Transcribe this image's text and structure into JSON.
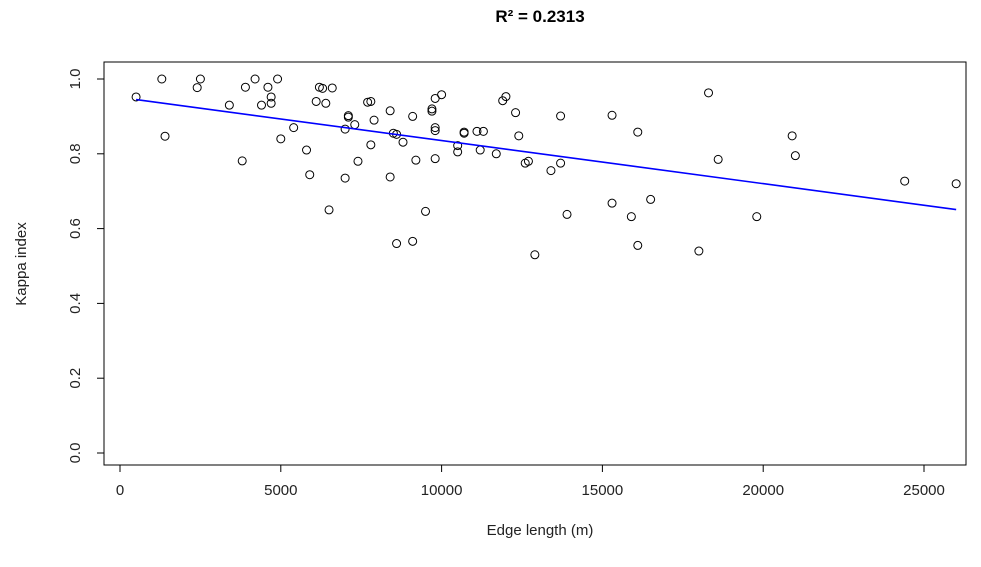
{
  "chart_data": {
    "type": "scatter",
    "title": "R² = 0.2313",
    "xlabel": "Edge length (m)",
    "ylabel": "Kappa index",
    "xlim": [
      0,
      26000
    ],
    "ylim": [
      0,
      1.0
    ],
    "x_ticks": [
      0,
      5000,
      10000,
      15000,
      20000,
      25000
    ],
    "y_ticks": [
      0.0,
      0.2,
      0.4,
      0.6,
      0.8,
      1.0
    ],
    "grid": false,
    "legend": "none",
    "colors": {
      "points": "#000000",
      "fit_line": "#0000ff"
    },
    "fit_line": {
      "x": [
        500,
        26000
      ],
      "y": [
        0.945,
        0.651
      ]
    },
    "points": [
      [
        500,
        0.952
      ],
      [
        1300,
        1.0
      ],
      [
        1400,
        0.847
      ],
      [
        2400,
        0.977
      ],
      [
        2500,
        1.0
      ],
      [
        3400,
        0.93
      ],
      [
        3800,
        0.781
      ],
      [
        3900,
        0.978
      ],
      [
        4200,
        1.0
      ],
      [
        4400,
        0.93
      ],
      [
        4600,
        0.978
      ],
      [
        4700,
        0.935
      ],
      [
        4700,
        0.952
      ],
      [
        4900,
        1.0
      ],
      [
        5000,
        0.84
      ],
      [
        5400,
        0.87
      ],
      [
        5800,
        0.81
      ],
      [
        5900,
        0.744
      ],
      [
        6100,
        0.94
      ],
      [
        6200,
        0.978
      ],
      [
        6300,
        0.975
      ],
      [
        6400,
        0.935
      ],
      [
        6500,
        0.65
      ],
      [
        6600,
        0.976
      ],
      [
        7000,
        0.866
      ],
      [
        7000,
        0.735
      ],
      [
        7100,
        0.898
      ],
      [
        7100,
        0.902
      ],
      [
        7300,
        0.878
      ],
      [
        7400,
        0.78
      ],
      [
        7700,
        0.938
      ],
      [
        7800,
        0.824
      ],
      [
        7800,
        0.94
      ],
      [
        7900,
        0.89
      ],
      [
        8400,
        0.738
      ],
      [
        8400,
        0.915
      ],
      [
        8500,
        0.855
      ],
      [
        8600,
        0.852
      ],
      [
        8600,
        0.56
      ],
      [
        8800,
        0.831
      ],
      [
        9100,
        0.9
      ],
      [
        9100,
        0.566
      ],
      [
        9200,
        0.783
      ],
      [
        9500,
        0.646
      ],
      [
        9700,
        0.914
      ],
      [
        9700,
        0.92
      ],
      [
        9800,
        0.87
      ],
      [
        9800,
        0.948
      ],
      [
        9800,
        0.862
      ],
      [
        9800,
        0.787
      ],
      [
        10000,
        0.958
      ],
      [
        10500,
        0.822
      ],
      [
        10500,
        0.805
      ],
      [
        10700,
        0.858
      ],
      [
        10700,
        0.855
      ],
      [
        11100,
        0.86
      ],
      [
        11200,
        0.81
      ],
      [
        11300,
        0.86
      ],
      [
        11700,
        0.8
      ],
      [
        11900,
        0.942
      ],
      [
        12000,
        0.953
      ],
      [
        12300,
        0.91
      ],
      [
        12400,
        0.848
      ],
      [
        12600,
        0.775
      ],
      [
        12700,
        0.78
      ],
      [
        12900,
        0.53
      ],
      [
        13400,
        0.755
      ],
      [
        13700,
        0.901
      ],
      [
        13700,
        0.775
      ],
      [
        13900,
        0.638
      ],
      [
        15300,
        0.903
      ],
      [
        15300,
        0.668
      ],
      [
        15900,
        0.632
      ],
      [
        16100,
        0.858
      ],
      [
        16100,
        0.555
      ],
      [
        16500,
        0.678
      ],
      [
        18000,
        0.54
      ],
      [
        18300,
        0.963
      ],
      [
        18600,
        0.785
      ],
      [
        19800,
        0.632
      ],
      [
        20900,
        0.848
      ],
      [
        21000,
        0.795
      ],
      [
        24400,
        0.727
      ],
      [
        26000,
        0.72
      ]
    ]
  }
}
